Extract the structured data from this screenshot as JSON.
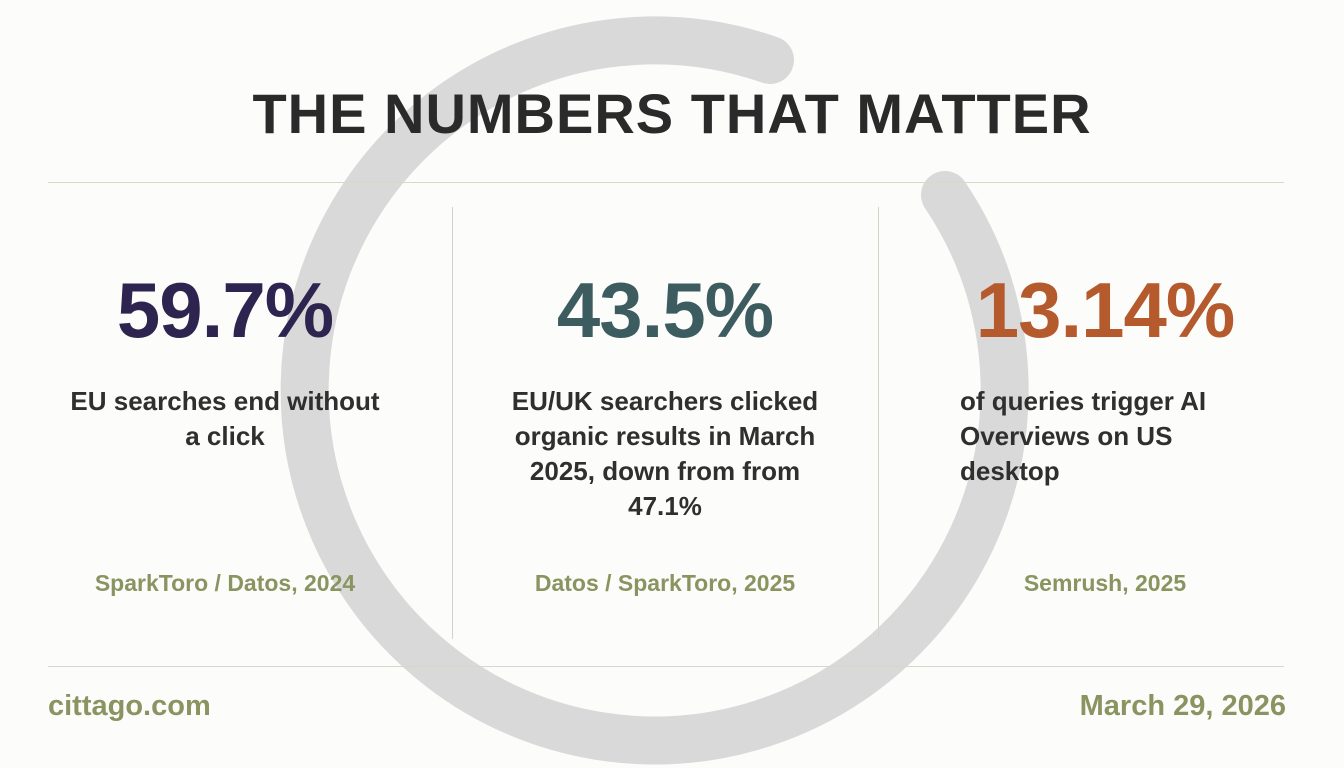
{
  "header": {
    "title": "THE NUMBERS THAT MATTER"
  },
  "stats": [
    {
      "value": "59.7%",
      "description": "EU searches end without a click",
      "source": "SparkToro / Datos, 2024",
      "color": "#2e2450"
    },
    {
      "value": "43.5%",
      "description": "EU/UK searchers clicked organic results in March 2025, down from from 47.1%",
      "source": "Datos / SparkToro, 2025",
      "color": "#3d5c60"
    },
    {
      "value": "13.14%",
      "description": "of queries trigger AI Overviews on US desktop",
      "source": "Semrush, 2025",
      "color": "#b55a2c"
    }
  ],
  "footer": {
    "site": "cittago.com",
    "date": "March 29, 2026"
  },
  "theme": {
    "accent": "#8a9460",
    "background_arc": "#d9d9d9"
  }
}
